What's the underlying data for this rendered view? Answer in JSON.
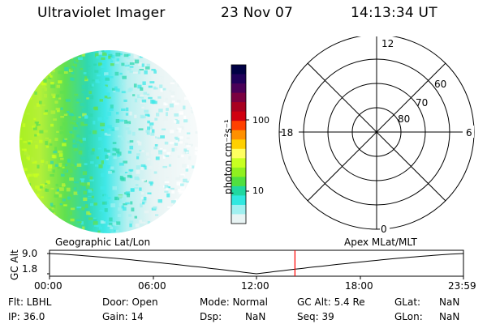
{
  "header": {
    "title": "Ultraviolet Imager",
    "date": "23 Nov 07",
    "time": "14:13:34 UT"
  },
  "colorbar": {
    "label": "photon cm⁻²s⁻¹",
    "ticks": [
      "100",
      "10"
    ],
    "colors": [
      "#000044",
      "#20005a",
      "#4a0058",
      "#7a0040",
      "#a80020",
      "#d00010",
      "#ff4000",
      "#ff9000",
      "#ffd000",
      "#ffff60",
      "#c8ff20",
      "#90f020",
      "#50e040",
      "#20d8a0",
      "#30e8e0",
      "#a0f0f0",
      "#e8f4f4"
    ]
  },
  "polar": {
    "ring_labels": [
      "60",
      "70",
      "80"
    ],
    "clock_labels": {
      "top": "12",
      "left": "18",
      "right": "6",
      "bottom": "0"
    }
  },
  "altitude_plot": {
    "ylabel": "GC Alt",
    "yticks": [
      "9.0",
      "1.8"
    ],
    "left_label": "Geographic Lat/Lon",
    "right_label": "Apex MLat/MLT",
    "xticks": [
      "00:00",
      "06:00",
      "12:00",
      "18:00",
      "23:59"
    ],
    "current_time_hours": 14.23,
    "marker_color": "#ff0000"
  },
  "status": {
    "flt_label": "Flt: LBHL",
    "ip_label": "IP: 36.0",
    "door_label": "Door: Open",
    "gain_label": "Gain: 14",
    "mode_label": "Mode: Normal",
    "dsp_label": "Dsp:",
    "dsp_value": "NaN",
    "gcalt_label": "GC Alt: 5.4 Re",
    "seq_label": "Seq: 39",
    "glat_label": "GLat:",
    "glat_value": "NaN",
    "glon_label": "GLon:",
    "glon_value": "NaN"
  }
}
